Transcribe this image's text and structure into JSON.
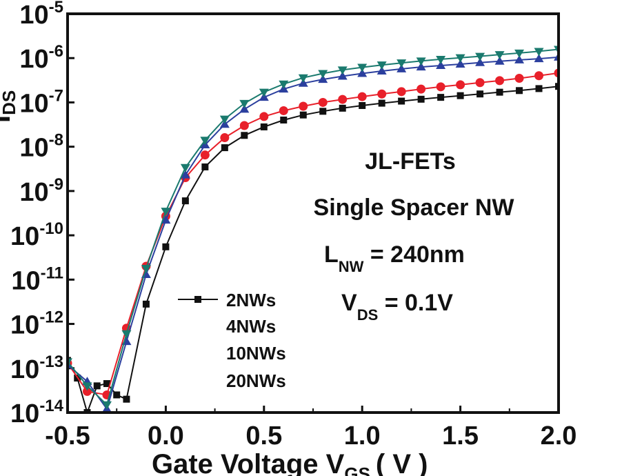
{
  "chart_data": {
    "type": "line",
    "xlabel_main": "Gate Voltage V",
    "xlabel_sub": "GS",
    "xlabel_unit": "( V )",
    "ylabel_main": "I",
    "ylabel_sub": "DS",
    "y_scale": "log",
    "xlim": [
      -0.5,
      2.0
    ],
    "ylim": [
      1e-14,
      1e-05
    ],
    "x_ticks": [
      -0.5,
      0.0,
      0.5,
      1.0,
      1.5,
      2.0
    ],
    "x_tick_labels": [
      "-0.5",
      "0.0",
      "0.5",
      "1.0",
      "1.5",
      "2.0"
    ],
    "y_ticks": [
      -14,
      -13,
      -12,
      -11,
      -10,
      -9,
      -8,
      -7,
      -6,
      -5
    ],
    "y_tick_base": "10",
    "y_tick_exponents": [
      "-14",
      "-13",
      "-12",
      "-11",
      "-10",
      "-9",
      "-8",
      "-7",
      "-6",
      "-5"
    ],
    "annotations": {
      "device": "JL-FETs",
      "structure": "Single Spacer NW",
      "length_main": "L",
      "length_sub": "NW",
      "length_value": " = 240nm",
      "vds_main": "V",
      "vds_sub": "DS",
      "vds_value": " = 0.1V"
    },
    "legend_position": "lower-center",
    "series": [
      {
        "name": "2NWs",
        "color": "#111111",
        "marker": "square",
        "x": [
          -0.5,
          -0.45,
          -0.4,
          -0.35,
          -0.3,
          -0.25,
          -0.2,
          -0.1,
          0.0,
          0.1,
          0.2,
          0.3,
          0.4,
          0.5,
          0.6,
          0.7,
          0.8,
          0.9,
          1.0,
          1.1,
          1.2,
          1.3,
          1.4,
          1.5,
          1.6,
          1.7,
          1.8,
          1.9,
          2.0
        ],
        "y": [
          1.5e-13,
          6e-14,
          1e-14,
          4e-14,
          4.5e-14,
          2.5e-14,
          2e-14,
          2.8e-12,
          5.5e-11,
          6e-10,
          3.5e-09,
          9.5e-09,
          1.8e-08,
          2.8e-08,
          4e-08,
          5.2e-08,
          6.3e-08,
          7.4e-08,
          8.5e-08,
          9.6e-08,
          1.07e-07,
          1.18e-07,
          1.3e-07,
          1.42e-07,
          1.55e-07,
          1.7e-07,
          1.85e-07,
          2.05e-07,
          2.3e-07
        ]
      },
      {
        "name": "4NWs",
        "color": "#e8202a",
        "marker": "circle",
        "x": [
          -0.5,
          -0.4,
          -0.3,
          -0.2,
          -0.1,
          0.0,
          0.1,
          0.2,
          0.3,
          0.4,
          0.5,
          0.6,
          0.7,
          0.8,
          0.9,
          1.0,
          1.1,
          1.2,
          1.3,
          1.4,
          1.5,
          1.6,
          1.7,
          1.8,
          1.9,
          2.0
        ],
        "y": [
          1.3e-13,
          3e-14,
          2.5e-14,
          8e-13,
          2e-11,
          2.7e-10,
          2e-09,
          6.5e-09,
          1.6e-08,
          3e-08,
          4.8e-08,
          6.5e-08,
          8.2e-08,
          1e-07,
          1.17e-07,
          1.35e-07,
          1.55e-07,
          1.75e-07,
          2e-07,
          2.25e-07,
          2.5e-07,
          2.8e-07,
          3.1e-07,
          3.5e-07,
          4e-07,
          4.6e-07
        ]
      },
      {
        "name": "10NWs",
        "color": "#2b3f9e",
        "marker": "triangle-up",
        "x": [
          -0.5,
          -0.4,
          -0.3,
          -0.2,
          -0.1,
          0.0,
          0.1,
          0.2,
          0.3,
          0.4,
          0.5,
          0.6,
          0.7,
          0.8,
          0.9,
          1.0,
          1.1,
          1.2,
          1.3,
          1.4,
          1.5,
          1.6,
          1.7,
          1.8,
          1.9,
          2.0
        ],
        "y": [
          1.2e-13,
          5e-14,
          1.2e-14,
          4e-13,
          1.3e-11,
          2.2e-10,
          2.3e-09,
          1.1e-08,
          3.2e-08,
          7e-08,
          1.3e-07,
          2e-07,
          2.7e-07,
          3.3e-07,
          3.9e-07,
          4.5e-07,
          5.1e-07,
          5.7e-07,
          6.3e-07,
          6.8e-07,
          7.3e-07,
          7.9e-07,
          8.5e-07,
          9.1e-07,
          9.7e-07,
          1.05e-06
        ]
      },
      {
        "name": "20NWs",
        "color": "#1a7a6e",
        "marker": "triangle-down",
        "x": [
          -0.5,
          -0.4,
          -0.3,
          -0.2,
          -0.1,
          0.0,
          0.1,
          0.2,
          0.3,
          0.4,
          0.5,
          0.6,
          0.7,
          0.8,
          0.9,
          1.0,
          1.1,
          1.2,
          1.3,
          1.4,
          1.5,
          1.6,
          1.7,
          1.8,
          1.9,
          2.0
        ],
        "y": [
          1.4e-13,
          4e-14,
          1.5e-14,
          6e-13,
          1.8e-11,
          3.5e-10,
          3.4e-09,
          1.4e-08,
          4.2e-08,
          9.5e-08,
          1.7e-07,
          2.6e-07,
          3.6e-07,
          4.5e-07,
          5.4e-07,
          6.2e-07,
          7e-07,
          7.8e-07,
          8.6e-07,
          9.4e-07,
          1.02e-06,
          1.1e-06,
          1.2e-06,
          1.3e-06,
          1.42e-06,
          1.58e-06
        ]
      }
    ]
  }
}
